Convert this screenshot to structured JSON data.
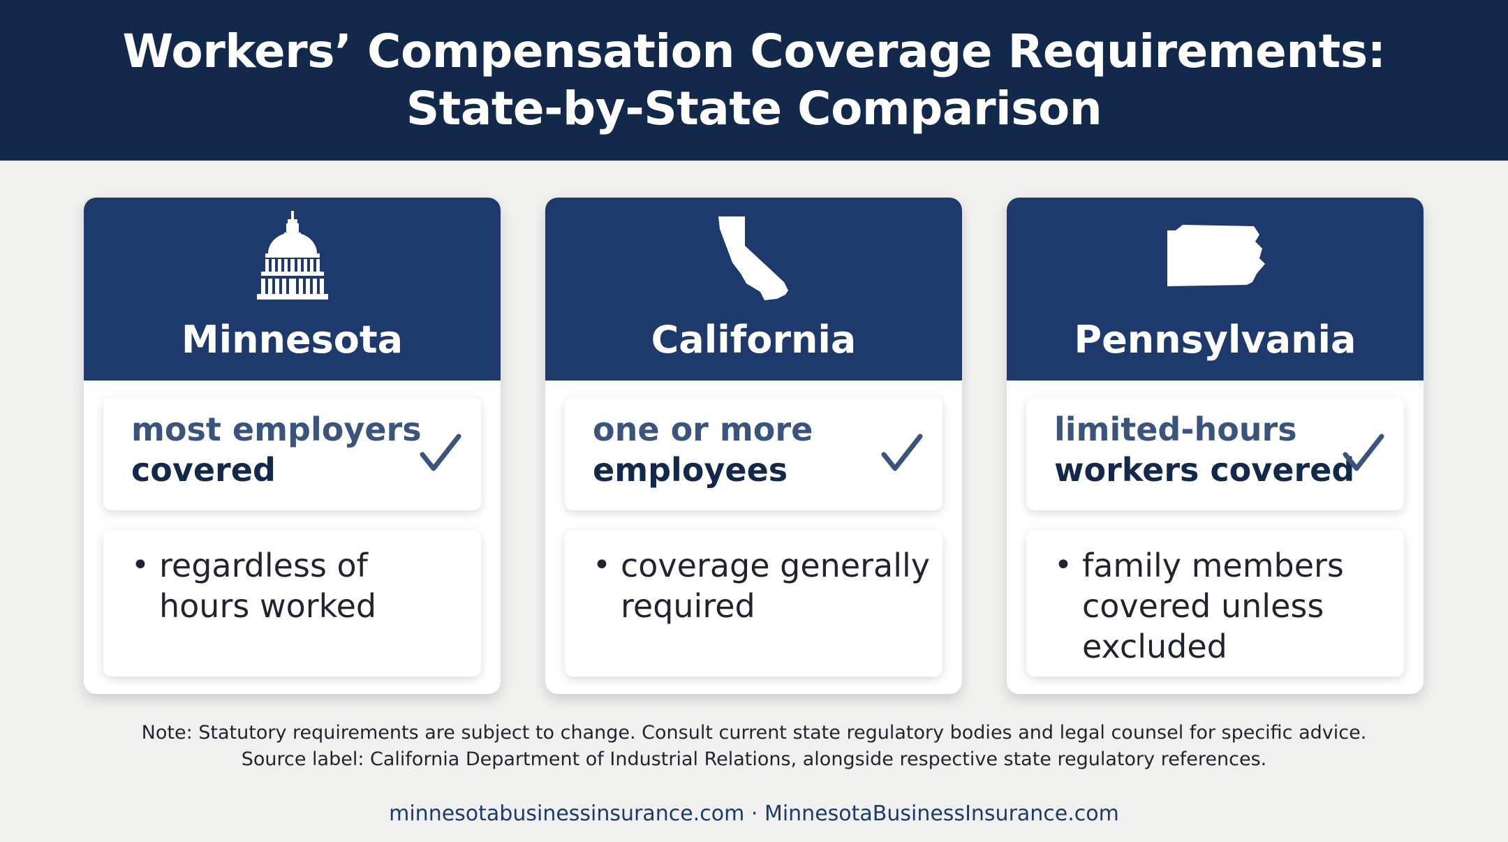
{
  "header": {
    "title_line1": "Workers’ Compensation Coverage Requirements:",
    "title_line2": "State-by-State Comparison"
  },
  "cards": [
    {
      "state": "Minnesota",
      "icon": "capitol-dome-icon",
      "claim_line1": "most employers",
      "claim_line2": "covered",
      "detail_lines": [
        "regardless of",
        "hours worked"
      ]
    },
    {
      "state": "California",
      "icon": "california-map-icon",
      "claim_line1": "one or more",
      "claim_line2": "employees",
      "detail_lines": [
        "coverage generally",
        "required"
      ]
    },
    {
      "state": "Pennsylvania",
      "icon": "pennsylvania-map-icon",
      "claim_line1": "limited-hours",
      "claim_line2": "workers covered",
      "detail_lines": [
        "family members",
        "covered unless",
        "excluded"
      ]
    }
  ],
  "note": {
    "line1": "Note: Statutory requirements are subject to change. Consult current state regulatory bodies and legal counsel for specific advice.",
    "line2": "Source label: California Department of Industrial Relations, alongside respective state regulatory references."
  },
  "footer": {
    "text": "minnesotabusinessinsurance.com · MinnesotaBusinessInsurance.com"
  },
  "colors": {
    "header_bg": "#13294b",
    "card_header_bg": "#1e3a6c",
    "accent_text": "#3a547d",
    "page_bg": "#f0f0ee"
  }
}
